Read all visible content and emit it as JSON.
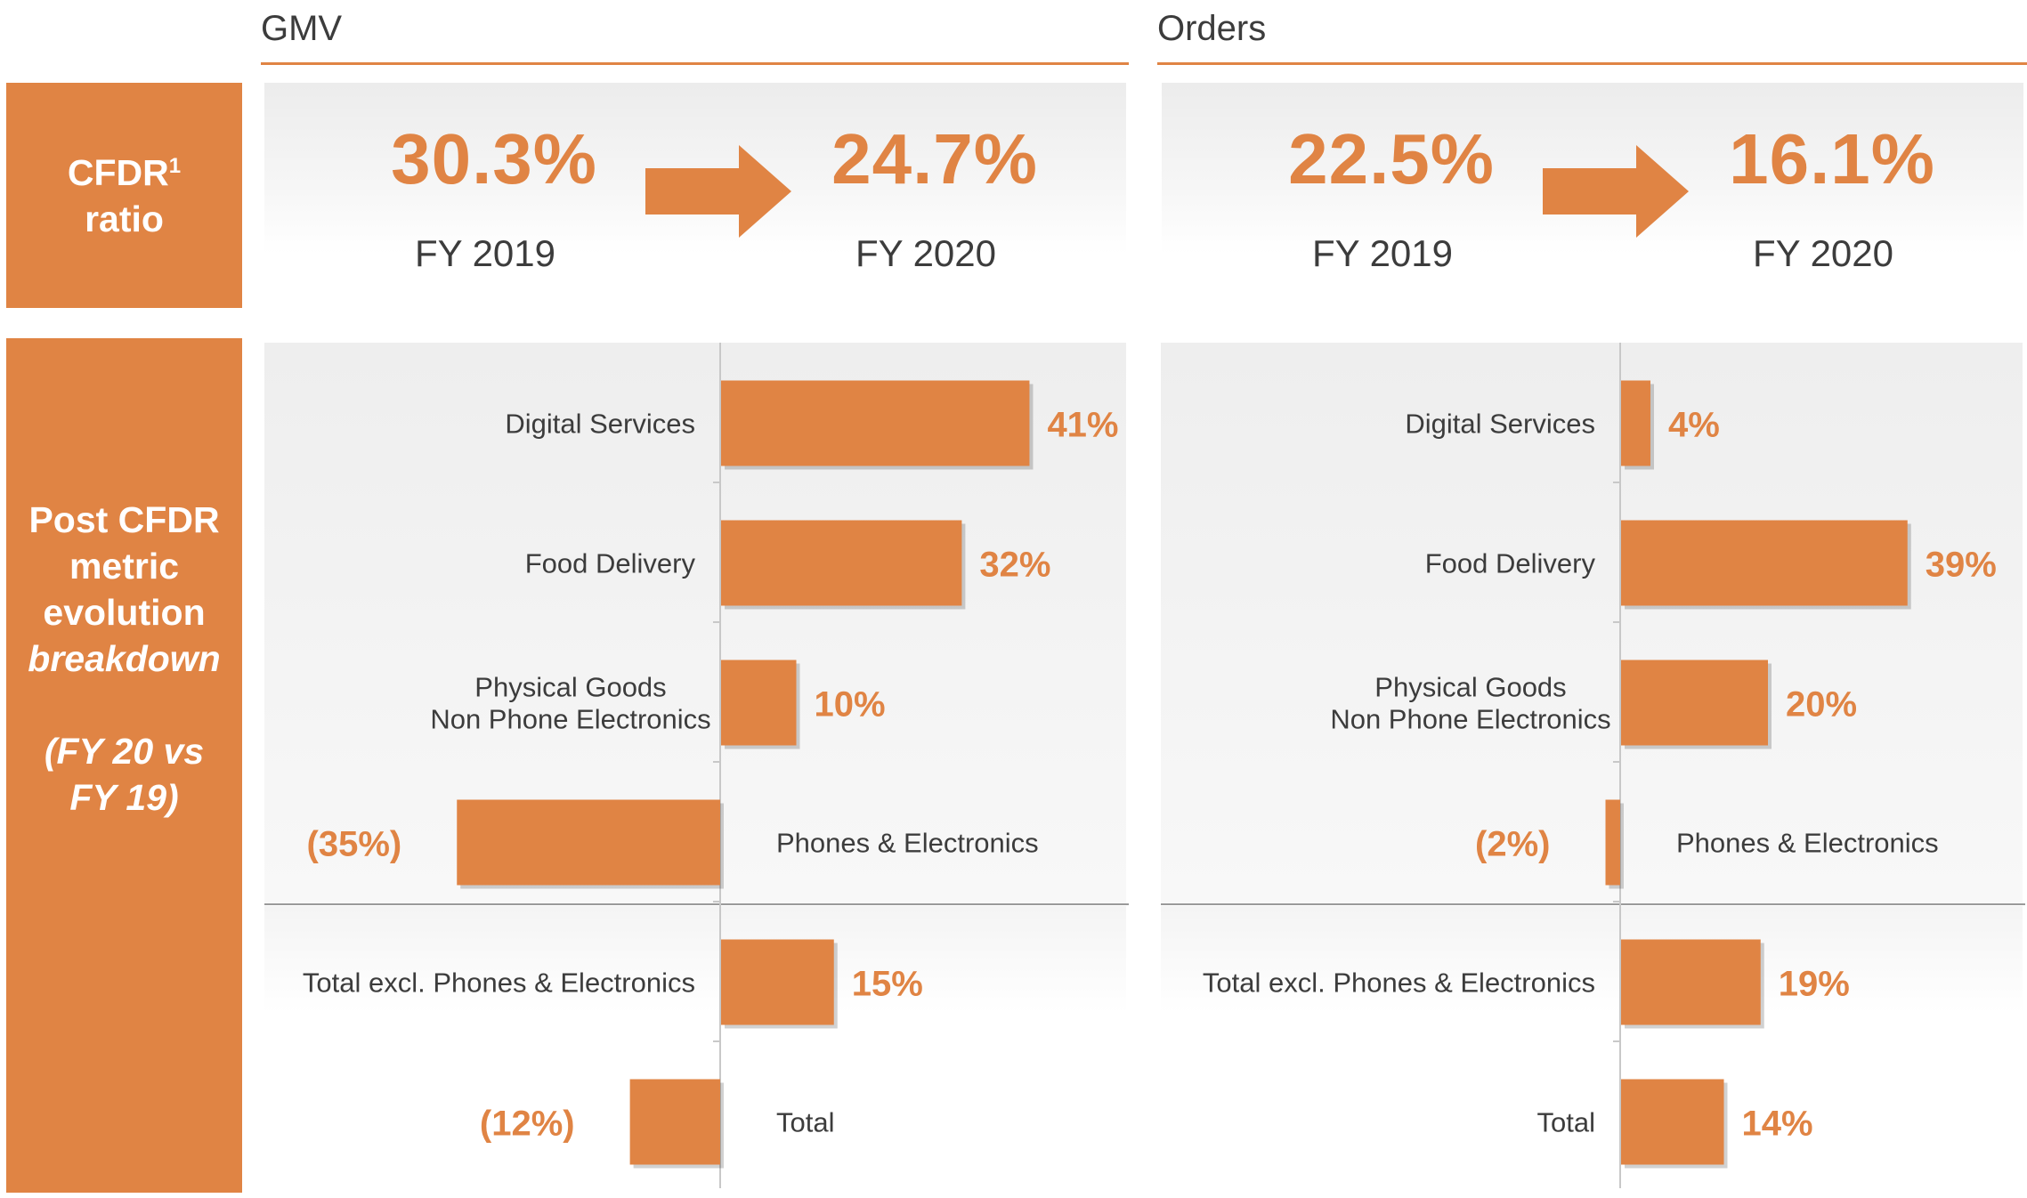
{
  "side_labels": {
    "cfdr_line1": "CFDR",
    "cfdr_sup": "1",
    "cfdr_line2": "ratio",
    "post_line1": "Post CFDR",
    "post_line2": "metric",
    "post_line3": "evolution",
    "post_line4": "breakdown",
    "post_line5": "(FY 20 vs",
    "post_line6": "FY 19)"
  },
  "sections": {
    "gmv": {
      "title": "GMV",
      "ratio_from": "30.3%",
      "year_from": "FY 2019",
      "ratio_to": "24.7%",
      "year_to": "FY 2020"
    },
    "orders": {
      "title": "Orders",
      "ratio_from": "22.5%",
      "year_from": "FY 2019",
      "ratio_to": "16.1%",
      "year_to": "FY 2020"
    }
  },
  "colors": {
    "accent": "#e08444",
    "text": "#3c3c3c",
    "panel": "#f2f2f2",
    "axis": "#c8c8c8"
  },
  "chart_data": [
    {
      "type": "bar",
      "orientation": "horizontal",
      "title": "GMV",
      "categories": [
        "Digital Services",
        "Food Delivery",
        "Physical Goods\nNon Phone Electronics",
        "Phones & Electronics",
        "Total excl. Phones & Electronics",
        "Total"
      ],
      "values": [
        41,
        32,
        10,
        -35,
        15,
        -12
      ],
      "labels": [
        "41%",
        "32%",
        "10%",
        "(35%)",
        "15%",
        "(12%)"
      ],
      "unit": "%"
    },
    {
      "type": "bar",
      "orientation": "horizontal",
      "title": "Orders",
      "categories": [
        "Digital Services",
        "Food Delivery",
        "Physical Goods\nNon Phone Electronics",
        "Phones & Electronics",
        "Total excl. Phones & Electronics",
        "Total"
      ],
      "values": [
        4,
        39,
        20,
        -2,
        19,
        14
      ],
      "labels": [
        "4%",
        "39%",
        "20%",
        "(2%)",
        "19%",
        "14%"
      ],
      "unit": "%"
    }
  ]
}
